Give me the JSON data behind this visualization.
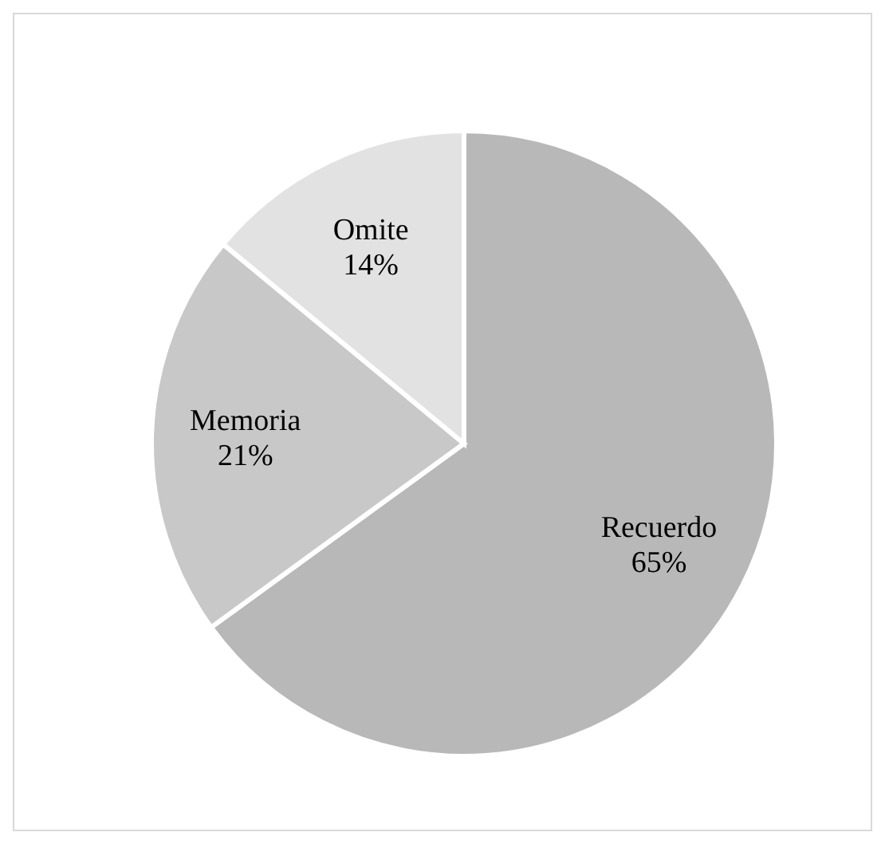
{
  "chart_data": {
    "type": "pie",
    "categories": [
      "Recuerdo",
      "Memoria",
      "Omite"
    ],
    "values": [
      65,
      21,
      14
    ],
    "value_labels": [
      "65%",
      "21%",
      "14%"
    ],
    "colors": [
      "#b8b8b8",
      "#c8c8c8",
      "#e2e2e2"
    ],
    "legend": false
  }
}
